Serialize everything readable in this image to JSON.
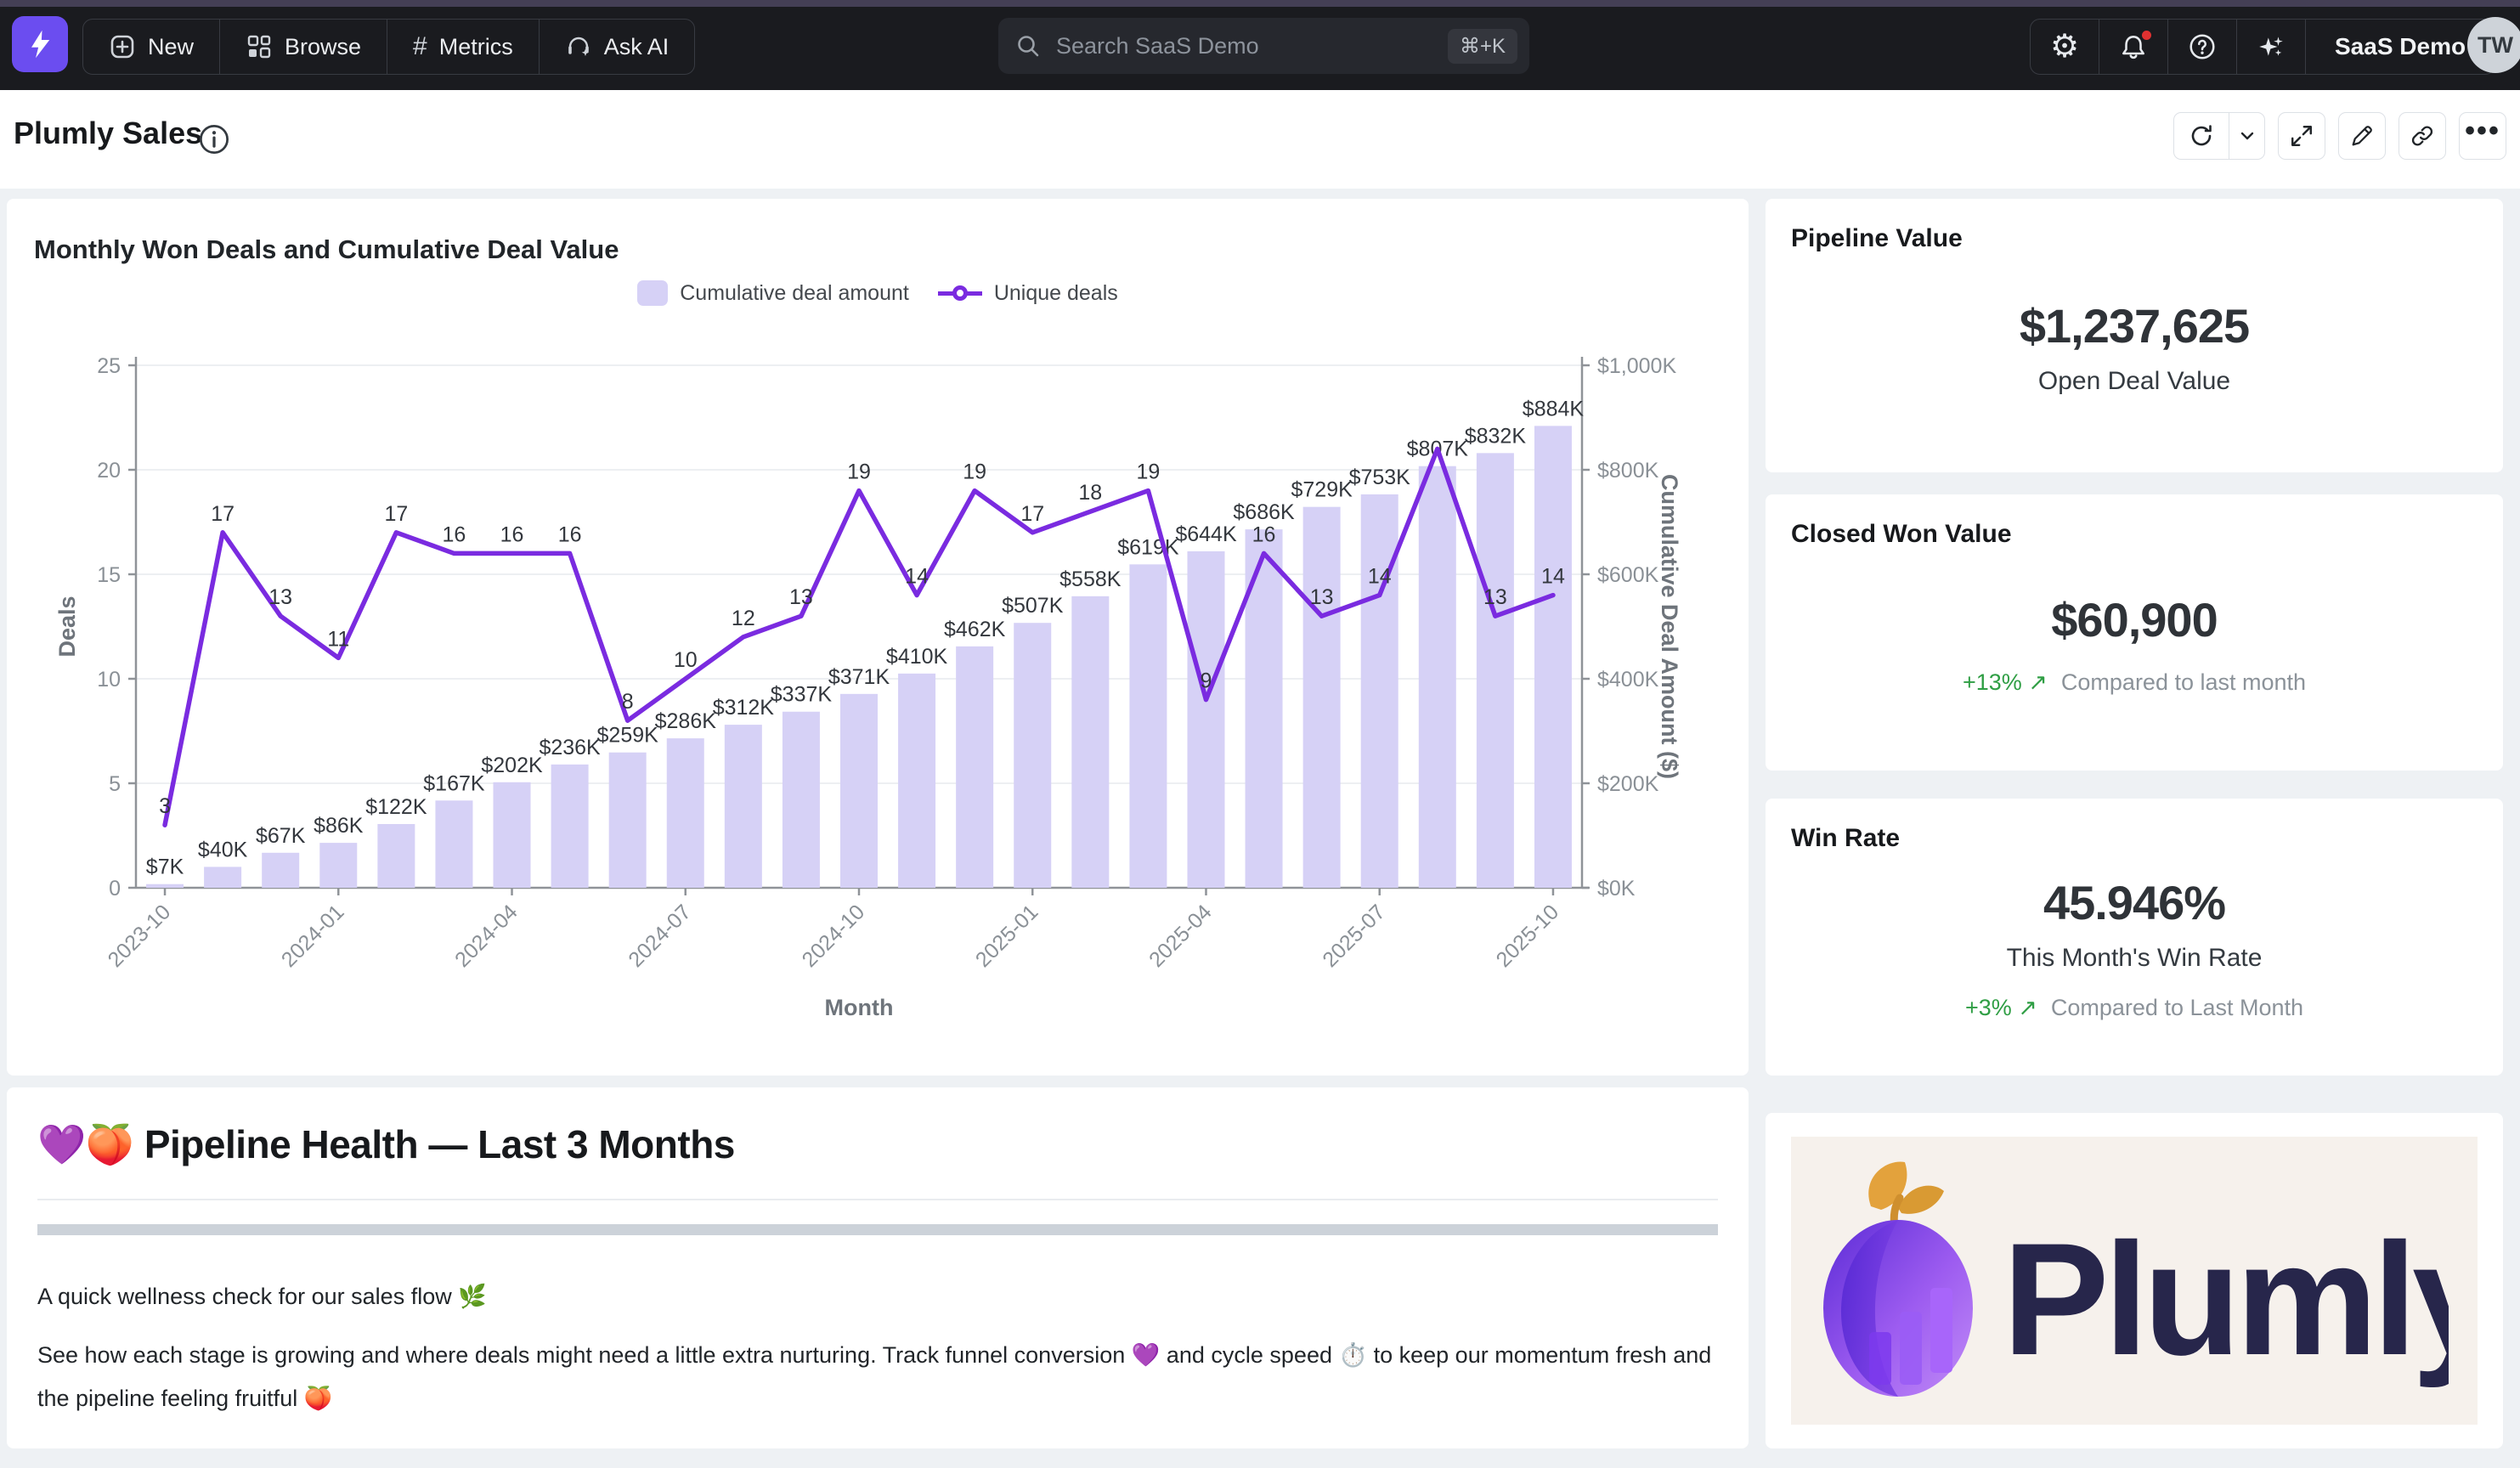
{
  "topbar": {
    "nav": [
      {
        "label": "New",
        "icon": "plus-square-icon"
      },
      {
        "label": "Browse",
        "icon": "grid-icon"
      },
      {
        "label": "Metrics",
        "icon": "hash-icon",
        "hash_glyph": "#"
      },
      {
        "label": "Ask AI",
        "icon": "headset-sparkle-icon"
      }
    ],
    "search": {
      "placeholder": "Search SaaS Demo",
      "shortcut": "⌘+K"
    },
    "icons": {
      "gear_glyph": "⚙",
      "help_glyph": "?"
    },
    "org_button": "SaaS Demo",
    "avatar_initials": "TW"
  },
  "header": {
    "title": "Plumly Sales",
    "more_glyph": "•••"
  },
  "chart_data": {
    "type": "bar+line",
    "title": "Monthly Won Deals and Cumulative Deal Value",
    "legend": [
      {
        "label": "Cumulative deal amount",
        "type": "bar",
        "color": "#d6d1f6"
      },
      {
        "label": "Unique deals",
        "type": "line",
        "color": "#7a2be0"
      }
    ],
    "x": [
      "2023-10",
      "2023-11",
      "2023-12",
      "2024-01",
      "2024-02",
      "2024-03",
      "2024-04",
      "2024-05",
      "2024-06",
      "2024-07",
      "2024-08",
      "2024-09",
      "2024-10",
      "2024-11",
      "2024-12",
      "2025-01",
      "2025-02",
      "2025-03",
      "2025-04",
      "2025-05",
      "2025-06",
      "2025-07",
      "2025-08",
      "2025-09",
      "2025-10"
    ],
    "x_tick_indexes": [
      0,
      3,
      6,
      9,
      12,
      15,
      18,
      21,
      24
    ],
    "xlabel": "Month",
    "series": [
      {
        "name": "Cumulative deal amount",
        "axis": "right",
        "unit": "$K",
        "values": [
          7,
          40,
          67,
          86,
          122,
          167,
          202,
          236,
          259,
          286,
          312,
          337,
          371,
          410,
          462,
          507,
          558,
          619,
          644,
          686,
          729,
          753,
          807,
          832,
          884
        ]
      },
      {
        "name": "Unique deals",
        "axis": "left",
        "values": [
          3,
          17,
          13,
          11,
          17,
          16,
          16,
          16,
          8,
          10,
          12,
          13,
          19,
          14,
          19,
          17,
          18,
          19,
          9,
          16,
          13,
          14,
          21,
          13,
          14
        ],
        "hidden_label_indexes": [
          22
        ]
      }
    ],
    "left_axis": {
      "label": "Deals",
      "min": 0,
      "max": 25,
      "tick_step": 5
    },
    "right_axis": {
      "label": "Cumulative Deal Amount ($)",
      "min": 0,
      "max": 1000,
      "tick_step": 200
    },
    "grid": true,
    "legend_position": "top-center"
  },
  "kpis": [
    {
      "title": "Pipeline Value",
      "value": "$1,237,625",
      "subtitle": "Open Deal Value"
    },
    {
      "title": "Closed Won Value",
      "value": "$60,900",
      "delta": "+13%",
      "delta_arrow": "↗",
      "delta_note": "Compared to last month"
    },
    {
      "title": "Win Rate",
      "value": "45.946%",
      "subtitle": "This Month's Win Rate",
      "delta": "+3%",
      "delta_arrow": "↗",
      "delta_note": "Compared to Last Month"
    }
  ],
  "notes": {
    "heading": "💜🍑 Pipeline Health — Last 3 Months",
    "p1": "A quick wellness check for our sales flow 🌿",
    "p2": "See how each stage is growing and where deals might need a little extra nurturing. Track funnel conversion 💜 and cycle speed ⏱️ to keep our momentum fresh and the pipeline feeling fruitful 🍑"
  },
  "brand": {
    "wordmark": "Plumly"
  },
  "colors": {
    "accent_purple": "#6b4df0",
    "line_purple": "#7a2be0",
    "bar_lavender": "#d6d1f6",
    "delta_green": "#2f9e44",
    "navbar_bg": "#1a1b1f",
    "page_bg": "#eef1f4",
    "logo_cream": "#f6f1ec"
  }
}
